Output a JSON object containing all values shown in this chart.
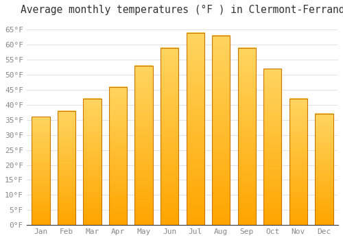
{
  "title": "Average monthly temperatures (°F ) in Clermont-Ferrand",
  "months": [
    "Jan",
    "Feb",
    "Mar",
    "Apr",
    "May",
    "Jun",
    "Jul",
    "Aug",
    "Sep",
    "Oct",
    "Nov",
    "Dec"
  ],
  "values": [
    36,
    38,
    42,
    46,
    53,
    59,
    64,
    63,
    59,
    52,
    42,
    37
  ],
  "bar_color_top": "#FFD060",
  "bar_color_bottom": "#FFA500",
  "bar_edge_color": "#CC7700",
  "background_color": "#FFFFFF",
  "grid_color": "#DDDDDD",
  "ylim": [
    0,
    68
  ],
  "yticks": [
    0,
    5,
    10,
    15,
    20,
    25,
    30,
    35,
    40,
    45,
    50,
    55,
    60,
    65
  ],
  "tick_label_color": "#888888",
  "title_fontsize": 10.5,
  "tick_fontsize": 8,
  "bar_width": 0.7
}
